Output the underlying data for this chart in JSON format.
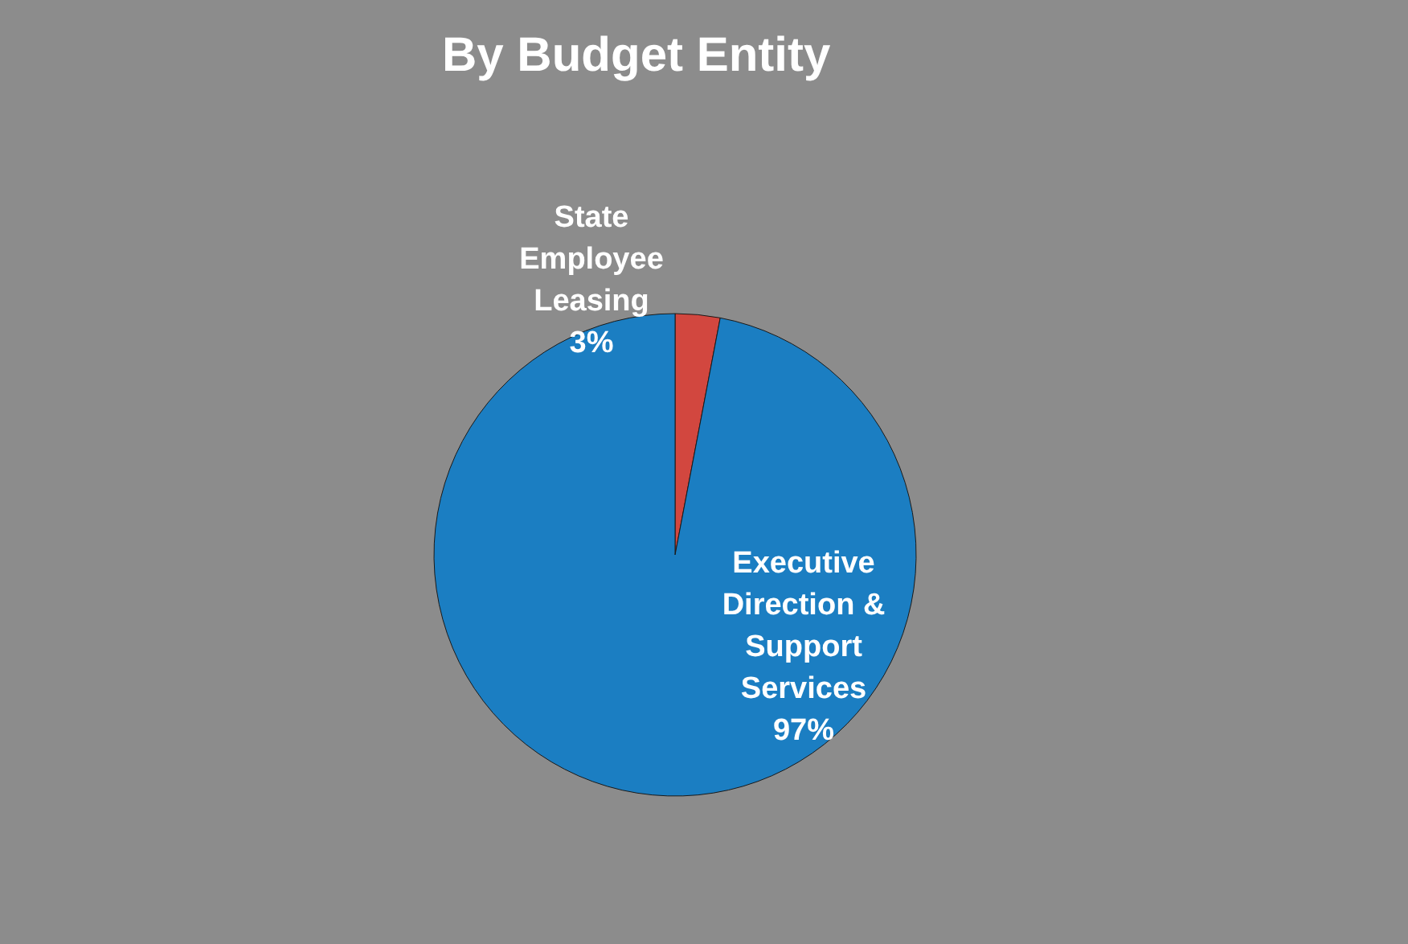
{
  "chart_data": {
    "type": "pie",
    "title": "By Budget Entity",
    "categories": [
      "State Employee Leasing",
      "Executive Direction & Support Services"
    ],
    "values": [
      3,
      97
    ],
    "value_labels": [
      "3%",
      "97%"
    ],
    "colors": [
      "#d2473f",
      "#1b7ec2"
    ]
  }
}
